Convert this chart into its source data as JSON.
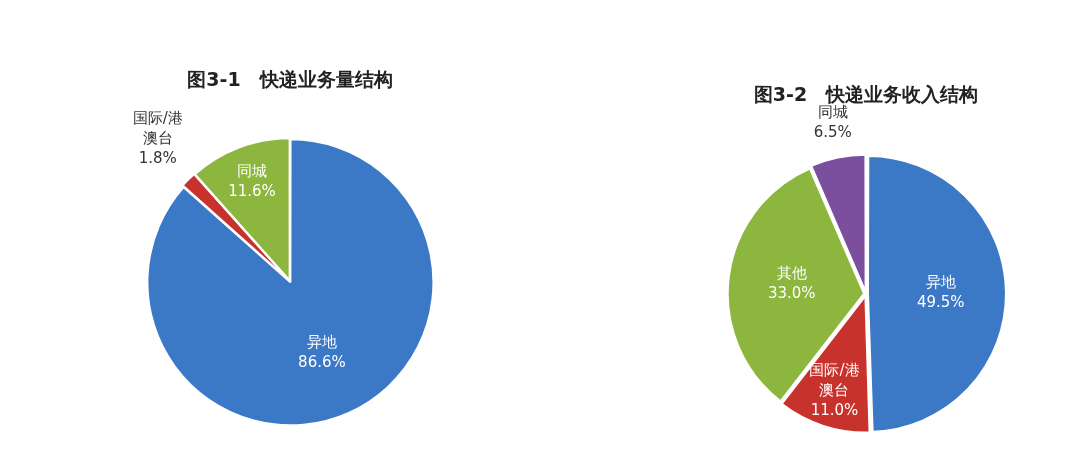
{
  "chart_data": [
    {
      "type": "pie",
      "title": "图3-1　快递业务量结构",
      "categories": [
        "异地",
        "国际/港澳台",
        "同城"
      ],
      "values": [
        86.6,
        1.8,
        11.6
      ],
      "colors": [
        "#3b78c6",
        "#c8322d",
        "#8db63e"
      ],
      "value_labels": [
        "86.6%",
        "1.8%",
        "11.6%"
      ]
    },
    {
      "type": "pie",
      "title": "图3-2　快递业务收入结构",
      "categories": [
        "异地",
        "国际/港澳台",
        "其他",
        "同城"
      ],
      "values": [
        49.5,
        11.0,
        33.0,
        6.5
      ],
      "colors": [
        "#3b78c6",
        "#c8322d",
        "#8db63e",
        "#7b4f9e"
      ],
      "value_labels": [
        "49.5%",
        "11.0%",
        "33.0%",
        "6.5%"
      ]
    }
  ]
}
